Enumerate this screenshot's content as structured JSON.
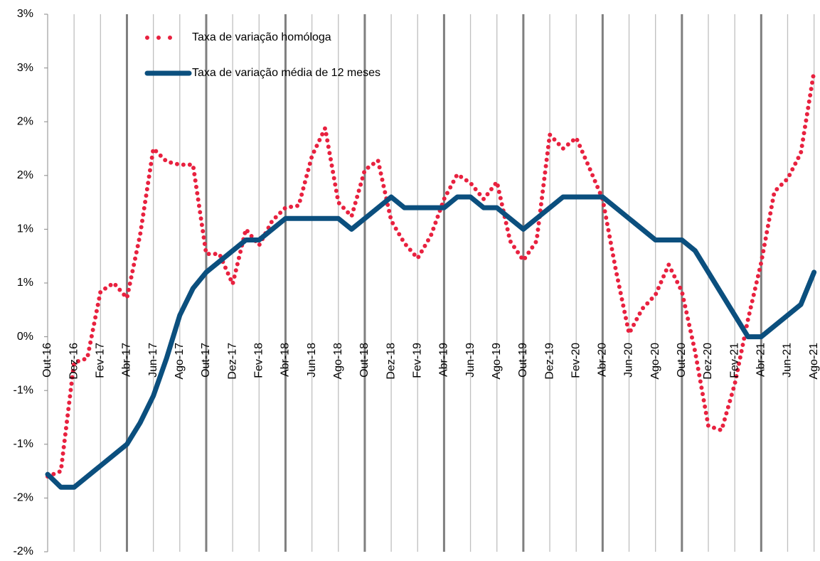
{
  "chart_data": {
    "type": "line",
    "categories": [
      "Out-16",
      null,
      "Dez-16",
      null,
      "Fev-17",
      null,
      "Abr-17",
      null,
      "Jun-17",
      null,
      "Ago-17",
      null,
      "Out-17",
      null,
      "Dez-17",
      null,
      "Fev-18",
      null,
      "Abr-18",
      null,
      "Jun-18",
      null,
      "Ago-18",
      null,
      "Out-18",
      null,
      "Dez-18",
      null,
      "Fev-19",
      null,
      "Abr-19",
      null,
      "Jun-19",
      null,
      "Ago-19",
      null,
      "Out-19",
      null,
      "Dez-19",
      null,
      "Fev-20",
      null,
      "Abr-20",
      null,
      "Jun-20",
      null,
      "Ago-20",
      null,
      "Out-20",
      null,
      "Dez-20",
      null,
      "Fev-21",
      null,
      "Abr-21",
      null,
      "Jun-21",
      null,
      "Ago-21"
    ],
    "series": [
      {
        "name": "Taxa de variação homóloga",
        "color": "#e8213f",
        "style": "dotted",
        "values": [
          -1.3,
          -1.25,
          -0.24,
          -0.2,
          0.42,
          0.5,
          0.36,
          0.95,
          1.75,
          1.63,
          1.6,
          1.6,
          0.77,
          0.77,
          0.49,
          1.0,
          0.85,
          1.08,
          1.2,
          1.22,
          1.68,
          1.94,
          1.25,
          1.12,
          1.55,
          1.64,
          1.08,
          0.87,
          0.73,
          0.94,
          1.28,
          1.51,
          1.43,
          1.28,
          1.44,
          0.89,
          0.71,
          0.89,
          1.88,
          1.75,
          1.85,
          1.57,
          1.28,
          0.62,
          0.03,
          0.26,
          0.39,
          0.67,
          0.42,
          -0.14,
          -0.83,
          -0.87,
          -0.44,
          0.16,
          0.69,
          1.35,
          1.47,
          1.71,
          2.47
        ]
      },
      {
        "name": "Taxa de variação média de 12 meses",
        "color": "#0b4f7e",
        "style": "solid",
        "values": [
          -1.28,
          -1.4,
          -1.4,
          -1.3,
          -1.2,
          -1.1,
          -1.0,
          -0.8,
          -0.55,
          -0.2,
          0.2,
          0.45,
          0.6,
          0.7,
          0.8,
          0.9,
          0.9,
          1.0,
          1.1,
          1.1,
          1.1,
          1.1,
          1.1,
          1.0,
          1.1,
          1.2,
          1.3,
          1.2,
          1.2,
          1.2,
          1.2,
          1.3,
          1.3,
          1.2,
          1.2,
          1.1,
          1.0,
          1.1,
          1.2,
          1.3,
          1.3,
          1.3,
          1.3,
          1.2,
          1.1,
          1.0,
          0.9,
          0.9,
          0.9,
          0.8,
          0.6,
          0.4,
          0.2,
          0.0,
          0.0,
          0.1,
          0.2,
          0.3,
          0.6
        ]
      }
    ],
    "ylim": [
      -2,
      3
    ],
    "yticks": [
      {
        "value": -2,
        "label": "-2%"
      },
      {
        "value": -1.5,
        "label": "-2%"
      },
      {
        "value": -1,
        "label": "-1%"
      },
      {
        "value": -0.5,
        "label": "-1%"
      },
      {
        "value": 0,
        "label": "0%"
      },
      {
        "value": 0.5,
        "label": "1%"
      },
      {
        "value": 1,
        "label": "1%"
      },
      {
        "value": 1.5,
        "label": "2%"
      },
      {
        "value": 2,
        "label": "2%"
      },
      {
        "value": 2.5,
        "label": "3%"
      },
      {
        "value": 3,
        "label": "3%"
      }
    ],
    "grid": "x"
  }
}
